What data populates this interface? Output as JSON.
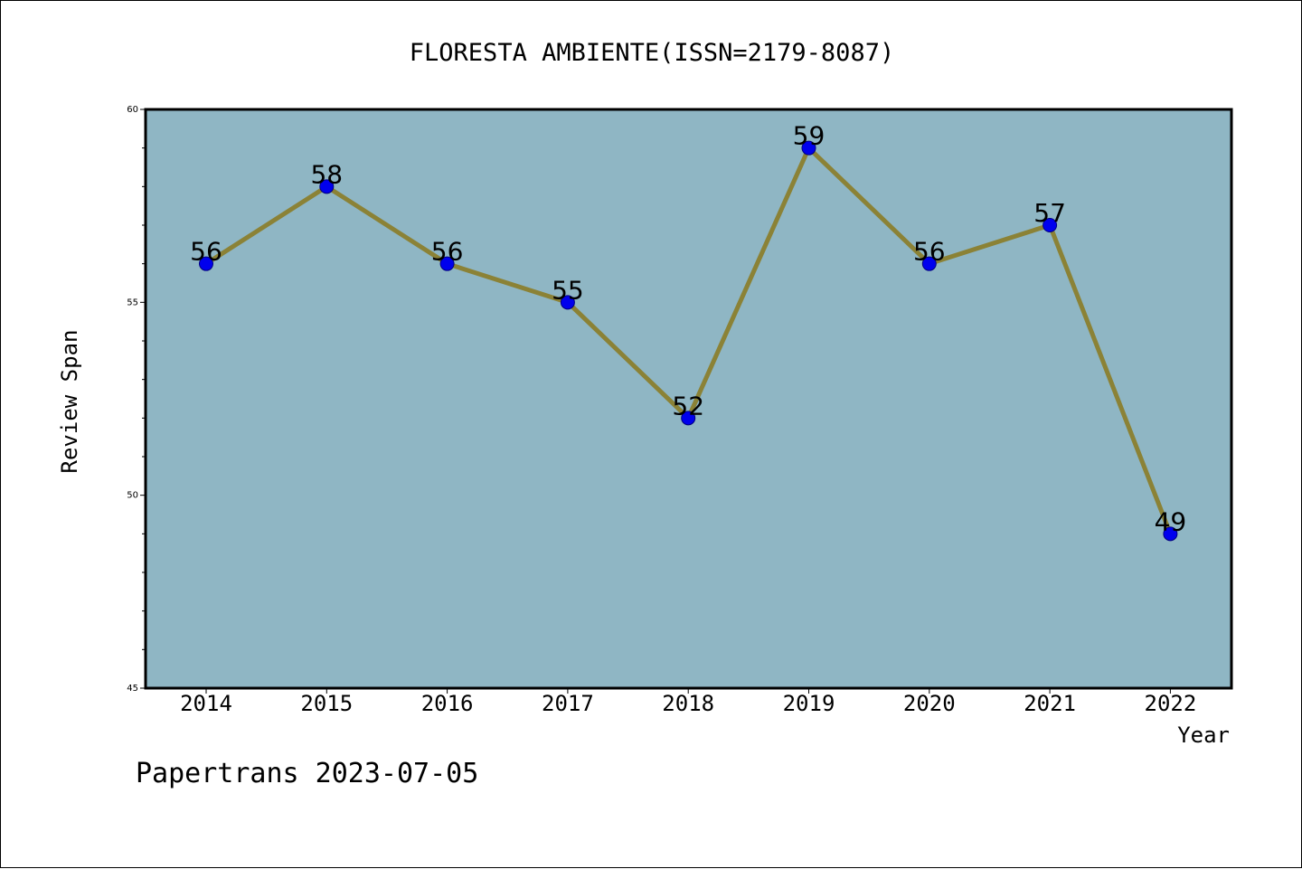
{
  "chart_data": {
    "type": "line",
    "title": "FLORESTA AMBIENTE(ISSN=2179-8087)",
    "xlabel": "Year",
    "ylabel": "Review Span",
    "categories": [
      "2014",
      "2015",
      "2016",
      "2017",
      "2018",
      "2019",
      "2020",
      "2021",
      "2022"
    ],
    "series": [
      {
        "values": [
          56,
          58,
          56,
          55,
          52,
          59,
          56,
          57,
          49
        ]
      }
    ],
    "ylim": [
      45,
      60
    ],
    "yticks": [
      45,
      50,
      55,
      60
    ],
    "grid": false,
    "legend": "none",
    "data_labels": true,
    "colors": {
      "plot_background": "#8fb6c4",
      "line": "#8b8236",
      "marker": "#0000ee",
      "marker_edge": "#000080"
    }
  },
  "footer": {
    "credit": "Papertrans 2023-07-05"
  }
}
